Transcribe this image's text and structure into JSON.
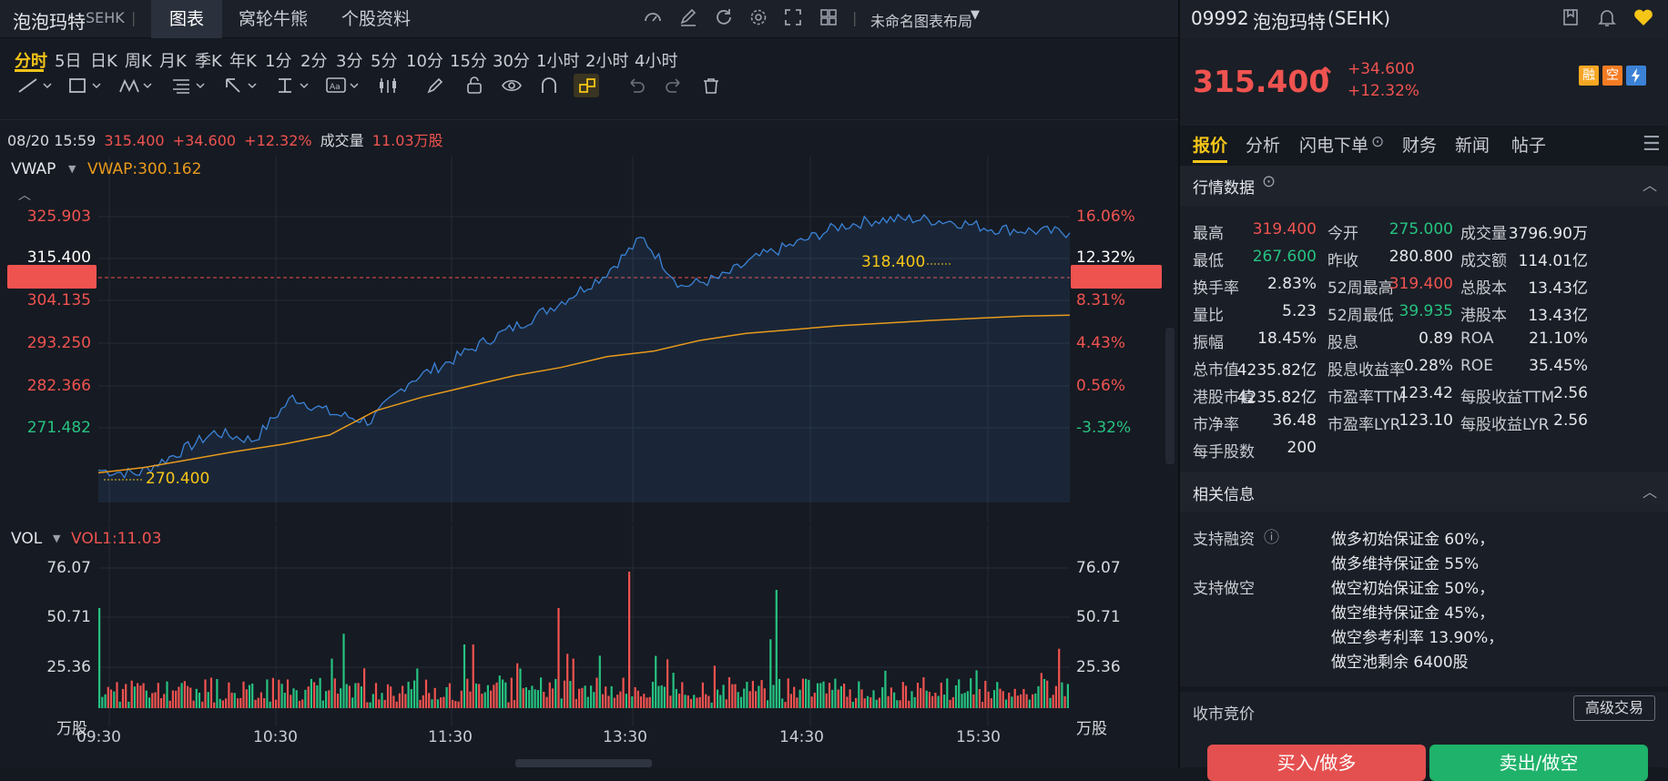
{
  "header": {
    "name": "泡泡玛特",
    "exchange": "SEHK",
    "tabs": [
      "图表",
      "窝轮牛熊",
      "个股资料"
    ],
    "layout_name": "未命名图表布局"
  },
  "intervals": [
    "分时",
    "5日",
    "日K",
    "周K",
    "月K",
    "季K",
    "年K",
    "1分",
    "2分",
    "3分",
    "5分",
    "10分",
    "15分",
    "30分",
    "1小时",
    "2小时",
    "4小时"
  ],
  "info_bar": {
    "datetime": "08/20 15:59",
    "price": "315.400",
    "change": "+34.600",
    "change_pct": "+12.32%",
    "volume_label": "成交量",
    "volume": "11.03万股"
  },
  "price_panel": {
    "indicator": "VWAP",
    "indicator_value": "VWAP:300.162",
    "y_left": [
      "325.903",
      "315.400",
      "304.135",
      "293.250",
      "282.366",
      "271.482"
    ],
    "y_right": [
      "16.06%",
      "12.32%",
      "8.31%",
      "4.43%",
      "0.56%",
      "-3.32%"
    ],
    "high_marker": "318.400",
    "low_marker": "270.400"
  },
  "vol_panel": {
    "indicator": "VOL",
    "indicator_value": "VOL1:11.03",
    "y_ticks": [
      "76.07",
      "50.71",
      "25.36"
    ],
    "unit": "万股"
  },
  "x_axis": [
    "09:30",
    "10:30",
    "11:30",
    "13:30",
    "14:30",
    "15:30"
  ],
  "chart_data": {
    "type": "line",
    "x_range": [
      "09:30",
      "16:00"
    ],
    "ylim": [
      270.4,
      318.4
    ],
    "series": [
      {
        "name": "VWAP",
        "values": [
          271.0,
          272.0,
          273.5,
          275.0,
          276.3,
          278.0,
          282.5,
          285.0,
          287.0,
          289.0,
          290.5,
          292.5,
          293.5,
          295.5,
          296.8,
          297.5,
          298.2,
          298.7,
          299.2,
          299.6,
          300.0,
          300.162
        ]
      }
    ],
    "price_values": [
      271.5,
      270.8,
      274.5,
      278.5,
      277.0,
      285.0,
      282.0,
      280.5,
      288.0,
      291.5,
      295.5,
      299.0,
      303.0,
      307.5,
      314.5,
      305.5,
      307.0,
      311.0,
      313.5,
      316.5,
      317.8,
      318.0,
      317.5,
      316.2,
      315.8,
      315.4
    ]
  },
  "right": {
    "code": "09992",
    "name": "泡泡玛特",
    "market": "(SEHK)",
    "price": "315.400",
    "change": "+34.600",
    "change_pct": "+12.32%",
    "badges": [
      "融",
      "空"
    ],
    "tabs": [
      "报价",
      "分析",
      "闪电下单",
      "财务",
      "新闻",
      "帖子"
    ],
    "section_quote": "行情数据",
    "quote_rows": [
      [
        {
          "l": "最高",
          "v": "319.400",
          "c": "up"
        },
        {
          "l": "今开",
          "v": "275.000",
          "c": "down"
        },
        {
          "l": "成交量",
          "v": "3796.90万",
          "c": ""
        }
      ],
      [
        {
          "l": "最低",
          "v": "267.600",
          "c": "down"
        },
        {
          "l": "昨收",
          "v": "280.800",
          "c": ""
        },
        {
          "l": "成交额",
          "v": "114.01亿",
          "c": ""
        }
      ],
      [
        {
          "l": "换手率",
          "v": "2.83%",
          "c": ""
        },
        {
          "l": "52周最高",
          "v": "319.400",
          "c": "up"
        },
        {
          "l": "总股本",
          "v": "13.43亿",
          "c": ""
        }
      ],
      [
        {
          "l": "量比",
          "v": "5.23",
          "c": ""
        },
        {
          "l": "52周最低",
          "v": "39.935",
          "c": "down"
        },
        {
          "l": "港股本",
          "v": "13.43亿",
          "c": ""
        }
      ],
      [
        {
          "l": "振幅",
          "v": "18.45%",
          "c": ""
        },
        {
          "l": "股息",
          "v": "0.89",
          "c": ""
        },
        {
          "l": "ROA",
          "v": "21.10%",
          "c": ""
        }
      ],
      [
        {
          "l": "总市值",
          "v": "4235.82亿",
          "c": ""
        },
        {
          "l": "股息收益率",
          "v": "0.28%",
          "c": ""
        },
        {
          "l": "ROE",
          "v": "35.45%",
          "c": ""
        }
      ],
      [
        {
          "l": "港股市值",
          "v": "4235.82亿",
          "c": ""
        },
        {
          "l": "市盈率TTM",
          "v": "123.42",
          "c": ""
        },
        {
          "l": "每股收益TTM",
          "v": "2.56",
          "c": ""
        }
      ],
      [
        {
          "l": "市净率",
          "v": "36.48",
          "c": ""
        },
        {
          "l": "市盈率LYR",
          "v": "123.10",
          "c": ""
        },
        {
          "l": "每股收益LYR",
          "v": "2.56",
          "c": ""
        }
      ],
      [
        {
          "l": "每手股数",
          "v": "200",
          "c": ""
        }
      ]
    ],
    "section_related": "相关信息",
    "margin_label": "支持融资",
    "short_label": "支持做空",
    "related_lines": [
      "做多初始保证金 60%，",
      "做多维持保证金 55%",
      "做空初始保证金 50%，",
      "做空维持保证金 45%，",
      "做空参考利率 13.90%，",
      "做空池剩余 6400股"
    ],
    "auction": "收市竞价",
    "advanced": "高级交易",
    "buy": "买入/做多",
    "sell": "卖出/做空"
  },
  "colors": {
    "up": "#ef5350",
    "down": "#26c281",
    "accent": "#f5c518",
    "price_line": "#3b82d6",
    "vwap": "#e89a1c"
  }
}
